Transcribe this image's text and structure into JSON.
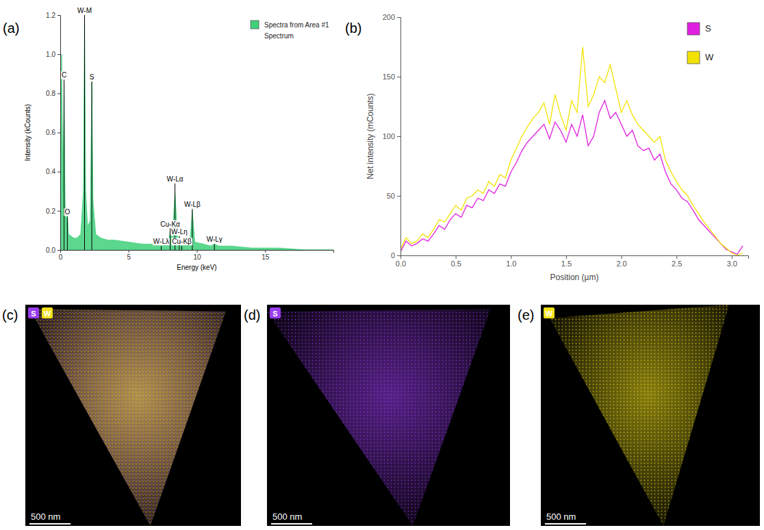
{
  "chart_data": [
    {
      "type": "area",
      "label": "(a)",
      "x_label": "Energy (keV)",
      "y_label": "Intensity (kCounts)",
      "subtitle": "Spectrum",
      "legend": "top-right",
      "grid": false,
      "xlim": [
        0,
        20
      ],
      "xticks": [
        0,
        5,
        10,
        15
      ],
      "ylim": [
        0,
        1.2
      ],
      "yticks": [
        {
          "value": 0,
          "label": "0.0"
        },
        0.2,
        0.4,
        0.6,
        0.8,
        {
          "value": 1,
          "label": "1.0"
        },
        1.2
      ],
      "x": [
        0.0,
        0.1,
        0.2,
        0.28,
        0.36,
        0.45,
        0.52,
        0.6,
        0.8,
        1.0,
        1.2,
        1.5,
        1.7,
        1.78,
        1.86,
        2.0,
        2.2,
        2.31,
        2.4,
        2.6,
        3.0,
        3.5,
        4.0,
        5.0,
        6.0,
        7.0,
        7.3,
        7.39,
        7.5,
        7.9,
        8.05,
        8.2,
        8.4,
        8.6,
        8.72,
        8.9,
        9.2,
        9.5,
        9.67,
        9.85,
        10.5,
        11.0,
        11.29,
        11.6,
        12.5,
        14,
        16,
        18,
        20
      ],
      "series": [
        {
          "name": "Spectra from Area #1",
          "color": "#3fd07a",
          "values": [
            0.02,
            1.0,
            0.3,
            0.85,
            0.24,
            0.12,
            0.2,
            0.08,
            0.07,
            0.06,
            0.06,
            0.08,
            0.3,
            1.2,
            0.3,
            0.12,
            0.15,
            0.86,
            0.25,
            0.08,
            0.06,
            0.05,
            0.05,
            0.04,
            0.03,
            0.03,
            0.03,
            0.03,
            0.03,
            0.03,
            0.1,
            0.05,
            0.3,
            0.05,
            0.07,
            0.03,
            0.03,
            0.04,
            0.2,
            0.04,
            0.03,
            0.02,
            0.03,
            0.02,
            0.02,
            0.01,
            0.01,
            0.0,
            0.0
          ]
        }
      ],
      "annotations": [
        {
          "text": "C",
          "x": 0.28,
          "y": 0.87
        },
        {
          "text": "O",
          "x": 0.52,
          "y": 0.17
        },
        {
          "text": "W-M",
          "x": 1.78,
          "y": 1.2
        },
        {
          "text": "S",
          "x": 2.31,
          "y": 0.86
        },
        {
          "text": "W-Lλ",
          "x": 7.39,
          "y": 0.02
        },
        {
          "text": "Cu-Kα",
          "x": 8.05,
          "y": 0.11
        },
        {
          "text": "W-Lα",
          "x": 8.4,
          "y": 0.34
        },
        {
          "text": "W-Lη",
          "x": 8.72,
          "y": 0.07
        },
        {
          "text": "Cu-Kβ",
          "x": 8.9,
          "y": 0.02
        },
        {
          "text": "W-Lβ",
          "x": 9.67,
          "y": 0.21
        },
        {
          "text": "W-Lγ",
          "x": 11.29,
          "y": 0.03
        }
      ]
    },
    {
      "type": "line",
      "label": "(b)",
      "x_label": "Position (µm)",
      "y_label": "Net intensity (mCounts)",
      "legend": "top-right",
      "grid": false,
      "xlim": [
        0,
        3.15
      ],
      "xticks": [
        {
          "value": 0,
          "label": "0.0"
        },
        0.5,
        {
          "value": 1,
          "label": "1.0"
        },
        1.5,
        {
          "value": 2,
          "label": "2.0"
        },
        2.5,
        {
          "value": 3,
          "label": "3.0"
        }
      ],
      "ylim": [
        0,
        200
      ],
      "yticks": [
        0,
        50,
        100,
        150,
        200
      ],
      "x": [
        0,
        0.05,
        0.1,
        0.15,
        0.2,
        0.25,
        0.3,
        0.35,
        0.4,
        0.45,
        0.5,
        0.55,
        0.6,
        0.65,
        0.7,
        0.75,
        0.8,
        0.85,
        0.9,
        0.95,
        1.0,
        1.05,
        1.1,
        1.15,
        1.2,
        1.25,
        1.3,
        1.35,
        1.4,
        1.45,
        1.5,
        1.55,
        1.6,
        1.65,
        1.7,
        1.75,
        1.8,
        1.85,
        1.9,
        1.95,
        2.0,
        2.05,
        2.1,
        2.15,
        2.2,
        2.25,
        2.3,
        2.35,
        2.4,
        2.45,
        2.5,
        2.55,
        2.6,
        2.65,
        2.7,
        2.75,
        2.8,
        2.85,
        2.9,
        2.95,
        3.0,
        3.05,
        3.1
      ],
      "series": [
        {
          "name": "S",
          "color": "#e020e0",
          "values": [
            3,
            12,
            8,
            10,
            14,
            12,
            18,
            25,
            22,
            30,
            35,
            32,
            42,
            40,
            48,
            46,
            55,
            52,
            60,
            58,
            70,
            78,
            88,
            95,
            100,
            105,
            110,
            98,
            112,
            105,
            95,
            110,
            100,
            118,
            92,
            100,
            120,
            130,
            115,
            120,
            110,
            100,
            105,
            92,
            88,
            90,
            80,
            85,
            70,
            60,
            55,
            48,
            45,
            38,
            30,
            25,
            20,
            15,
            10,
            5,
            3,
            1,
            8
          ]
        },
        {
          "name": "W",
          "color": "#f2e200",
          "values": [
            5,
            15,
            10,
            12,
            18,
            15,
            22,
            30,
            28,
            35,
            42,
            38,
            48,
            50,
            55,
            52,
            62,
            58,
            68,
            65,
            80,
            90,
            100,
            108,
            115,
            120,
            128,
            110,
            135,
            118,
            105,
            130,
            120,
            175,
            125,
            135,
            150,
            145,
            160,
            140,
            120,
            130,
            118,
            110,
            105,
            100,
            95,
            100,
            80,
            70,
            62,
            55,
            50,
            42,
            35,
            28,
            22,
            16,
            10,
            6,
            2,
            0,
            2
          ]
        }
      ]
    }
  ],
  "maps": [
    {
      "label": "(c)",
      "elements": [
        {
          "name": "S",
          "color": "#9a3cf0"
        },
        {
          "name": "W",
          "color": "#f2e21c"
        }
      ],
      "scale_bar": "500 nm"
    },
    {
      "label": "(d)",
      "elements": [
        {
          "name": "S",
          "color": "#9a3cf0"
        }
      ],
      "scale_bar": "500 nm"
    },
    {
      "label": "(e)",
      "elements": [
        {
          "name": "W",
          "color": "#f2e21c"
        }
      ],
      "scale_bar": "500 nm"
    }
  ]
}
